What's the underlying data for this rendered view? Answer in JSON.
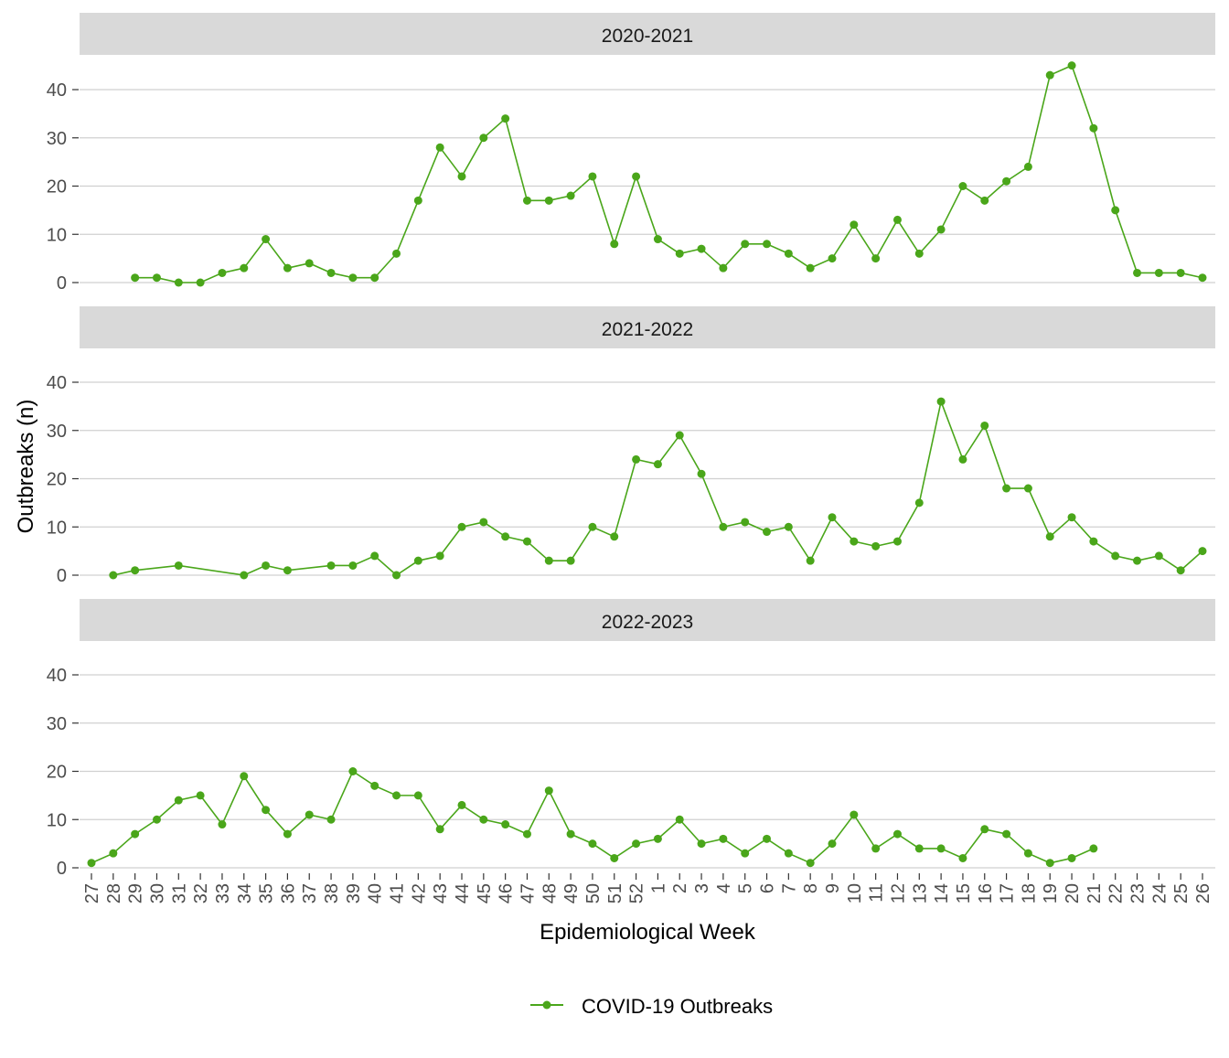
{
  "chart_data": {
    "type": "line",
    "xlabel": "Epidemiological Week",
    "ylabel": "Outbreaks (n)",
    "ylim": [
      0,
      45
    ],
    "yticks": [
      0,
      10,
      20,
      30,
      40
    ],
    "grid": "horizontal",
    "legend_position": "bottom",
    "color": "#4aa61a",
    "categories": [
      "27",
      "28",
      "29",
      "30",
      "31",
      "32",
      "33",
      "34",
      "35",
      "36",
      "37",
      "38",
      "39",
      "40",
      "41",
      "42",
      "43",
      "44",
      "45",
      "46",
      "47",
      "48",
      "49",
      "50",
      "51",
      "52",
      "1",
      "2",
      "3",
      "4",
      "5",
      "6",
      "7",
      "8",
      "9",
      "10",
      "11",
      "12",
      "13",
      "14",
      "15",
      "16",
      "17",
      "18",
      "19",
      "20",
      "21",
      "22",
      "23",
      "24",
      "25",
      "26"
    ],
    "series_name": "COVID-19 Outbreaks",
    "panels": [
      {
        "title": "2020-2021",
        "values": [
          null,
          null,
          1,
          1,
          0,
          0,
          2,
          3,
          9,
          3,
          4,
          2,
          1,
          1,
          6,
          17,
          28,
          22,
          30,
          34,
          17,
          17,
          18,
          22,
          8,
          22,
          9,
          6,
          7,
          3,
          8,
          8,
          6,
          3,
          5,
          12,
          5,
          13,
          6,
          11,
          20,
          17,
          21,
          24,
          43,
          45,
          32,
          15,
          2,
          2,
          2,
          1
        ]
      },
      {
        "title": "2021-2022",
        "values": [
          null,
          0,
          1,
          null,
          2,
          null,
          null,
          0,
          2,
          1,
          null,
          2,
          2,
          4,
          0,
          3,
          4,
          10,
          11,
          8,
          7,
          3,
          3,
          10,
          8,
          24,
          23,
          29,
          21,
          10,
          11,
          9,
          10,
          3,
          12,
          7,
          6,
          7,
          15,
          36,
          24,
          31,
          18,
          18,
          8,
          12,
          7,
          4,
          3,
          4,
          1,
          5
        ]
      },
      {
        "title": "2022-2023",
        "values": [
          1,
          3,
          7,
          10,
          14,
          15,
          9,
          19,
          12,
          7,
          11,
          10,
          20,
          17,
          15,
          15,
          8,
          13,
          10,
          9,
          7,
          16,
          7,
          5,
          2,
          5,
          6,
          10,
          5,
          6,
          3,
          6,
          3,
          1,
          5,
          11,
          4,
          7,
          4,
          4,
          2,
          8,
          7,
          3,
          1,
          2,
          4,
          null,
          null,
          null,
          null,
          null
        ]
      }
    ]
  }
}
